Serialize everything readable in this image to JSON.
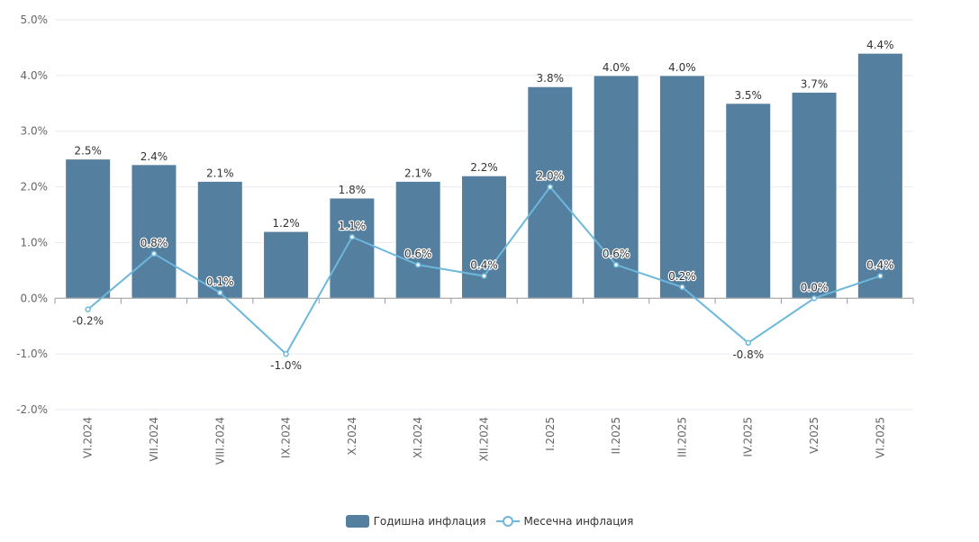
{
  "chart_data": {
    "type": "bar+line",
    "title": "",
    "xlabel": "",
    "ylabel": "",
    "ylim": [
      -2.0,
      5.0
    ],
    "yticks": [
      "-2.0%",
      "-1.0%",
      "0.0%",
      "1.0%",
      "2.0%",
      "3.0%",
      "4.0%",
      "5.0%"
    ],
    "ytick_values": [
      -2,
      -1,
      0,
      1,
      2,
      3,
      4,
      5
    ],
    "grid": true,
    "legend_position": "bottom-center",
    "categories": [
      "VI.2024",
      "VII.2024",
      "VIII.2024",
      "IX.2024",
      "X.2024",
      "XI.2024",
      "XII.2024",
      "I.2025",
      "II.2025",
      "III.2025",
      "IV.2025",
      "V.2025",
      "VI.2025"
    ],
    "series": [
      {
        "name": "Годишна инфлация",
        "type": "bar",
        "color": "#557f9f",
        "values": [
          2.5,
          2.4,
          2.1,
          1.2,
          1.8,
          2.1,
          2.2,
          3.8,
          4.0,
          4.0,
          3.5,
          3.7,
          4.4
        ],
        "labels": [
          "2.5%",
          "2.4%",
          "2.1%",
          "1.2%",
          "1.8%",
          "2.1%",
          "2.2%",
          "3.8%",
          "4.0%",
          "4.0%",
          "3.5%",
          "3.7%",
          "4.4%"
        ]
      },
      {
        "name": "Месечна инфлация",
        "type": "line",
        "color": "#6cb8dd",
        "values": [
          -0.2,
          0.8,
          0.1,
          -1.0,
          1.1,
          0.6,
          0.4,
          2.0,
          0.6,
          0.2,
          -0.8,
          0.0,
          0.4
        ],
        "labels": [
          "-0.2%",
          "0.8%",
          "0.1%",
          "-1.0%",
          "1.1%",
          "0.6%",
          "0.4%",
          "2.0%",
          "0.6%",
          "0.2%",
          "-0.8%",
          "0.0%",
          "0.4%"
        ]
      }
    ]
  }
}
